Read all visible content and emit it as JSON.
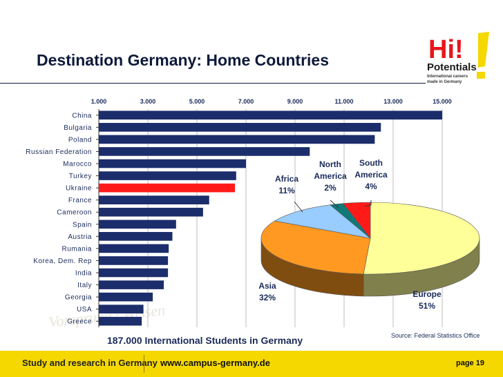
{
  "slide": {
    "title": "Destination Germany: Home Countries",
    "caption": "187.000 International Students in Germany",
    "source": "Source: Federal Statistics Office"
  },
  "logo": {
    "line1": "Hi!",
    "line2": "Potentials",
    "line3": "International careers",
    "line4": "made in Germany"
  },
  "footer": {
    "left": "Study and research in Germany",
    "url": "www.campus-germany.de",
    "page": "page 19"
  },
  "colors": {
    "bar": "#1c2d6b",
    "highlight": "#ff1a1a",
    "europe": "#ffff99",
    "asia": "#ff9922",
    "africa": "#99ccff",
    "north_america": "#0f7a78",
    "south_america": "#ff1a1a",
    "footer": "#f5d800"
  },
  "chart_data": [
    {
      "type": "bar",
      "orientation": "horizontal",
      "categories": [
        "China",
        "Bulgaria",
        "Poland",
        "Russian Federation",
        "Marocco",
        "Turkey",
        "Ukraine",
        "France",
        "Cameroon",
        "Spain",
        "Austria",
        "Rumania",
        "Korea, Dem. Rep",
        "India",
        "Italy",
        "Georgia",
        "USA",
        "Greece"
      ],
      "values": [
        15000,
        12500,
        12250,
        9600,
        7000,
        6600,
        6550,
        5500,
        5250,
        4150,
        4000,
        3850,
        3820,
        3820,
        3650,
        3200,
        2820,
        2750
      ],
      "highlight": "Ukraine",
      "xticks": [
        "1.000",
        "3.000",
        "5.000",
        "7.000",
        "9.000",
        "11.000",
        "13.000",
        "15.000"
      ],
      "xlim": [
        1000,
        15000
      ],
      "grid": true
    },
    {
      "type": "pie",
      "style": "3d",
      "slices": [
        {
          "label": "Europe",
          "value": 51,
          "pct": "51%"
        },
        {
          "label": "Asia",
          "value": 32,
          "pct": "32%"
        },
        {
          "label": "Africa",
          "value": 11,
          "pct": "11%"
        },
        {
          "label": "North America",
          "value": 2,
          "pct": "2%"
        },
        {
          "label": "South America",
          "value": 4,
          "pct": "4%"
        }
      ]
    }
  ]
}
